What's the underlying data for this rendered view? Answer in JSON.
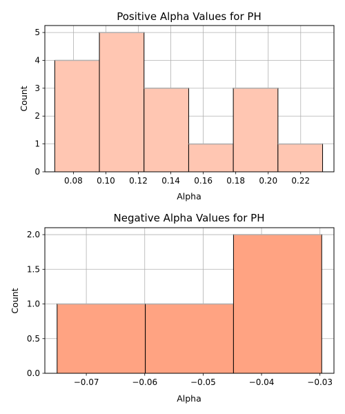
{
  "chart_data": [
    {
      "type": "bar",
      "title": "Positive Alpha Values for PH",
      "xlabel": "Alpha",
      "ylabel": "Count",
      "bin_edges": [
        0.0685,
        0.096,
        0.1235,
        0.151,
        0.1785,
        0.206,
        0.2335
      ],
      "values": [
        4,
        5,
        3,
        1,
        3,
        1
      ],
      "xlim": [
        0.0624,
        0.2405
      ],
      "ylim": [
        0,
        5.25
      ],
      "xticks": [
        "0.08",
        "0.10",
        "0.12",
        "0.14",
        "0.16",
        "0.18",
        "0.20",
        "0.22"
      ],
      "yticks": [
        "0",
        "1",
        "2",
        "3",
        "4",
        "5"
      ],
      "bar_color": "#FFC6B2",
      "edge_color": "#000000",
      "grid": true,
      "legend": null
    },
    {
      "type": "bar",
      "title": "Negative Alpha Values for PH",
      "xlabel": "Alpha",
      "ylabel": "Count",
      "bin_edges": [
        -0.075,
        -0.0599,
        -0.0448,
        -0.0297
      ],
      "values": [
        1,
        1,
        2
      ],
      "xlim": [
        -0.0771,
        -0.0276
      ],
      "ylim": [
        0,
        2.1
      ],
      "xticks": [
        "−0.07",
        "−0.06",
        "−0.05",
        "−0.04",
        "−0.03"
      ],
      "yticks": [
        "0.0",
        "0.5",
        "1.0",
        "1.5",
        "2.0"
      ],
      "bar_color": "#FFA382",
      "edge_color": "#000000",
      "grid": true,
      "legend": null
    }
  ]
}
